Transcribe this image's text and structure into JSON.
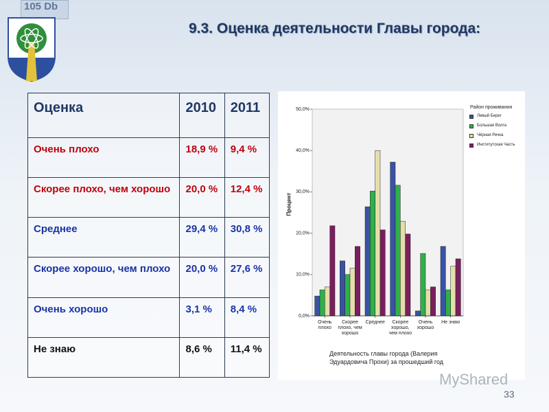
{
  "header": {
    "title": "9.3. Оценка деятельности Главы города:",
    "badge": "105 Db"
  },
  "table": {
    "header": [
      "Оценка",
      "2010",
      "2011"
    ],
    "rows": [
      [
        "Очень плохо",
        "18,9 %",
        "9,4 %"
      ],
      [
        "Скорее плохо, чем хорошо",
        "20,0 %",
        "12,4 %"
      ],
      [
        "Среднее",
        "29,4 %",
        "30,8 %"
      ],
      [
        "Скорее хорошо, чем плохо",
        "20,0 %",
        "27,6 %"
      ],
      [
        "Очень хорошо",
        "3,1 %",
        "8,4 %"
      ],
      [
        "Не знаю",
        "8,6 %",
        "11,4 %"
      ]
    ]
  },
  "chart_data": {
    "type": "bar",
    "x_label": "Деятельность главы города (Валерия Эдуардовича Прохи) за прошедший год",
    "y_label": "Процент",
    "legend_title": "Район проживания",
    "categories": [
      "Очень плохо",
      "Скорее плохо, чем хорошо",
      "Среднее",
      "Скорее хорошо, чем плохо",
      "Очень хорошо",
      "Не знаю"
    ],
    "series": [
      {
        "name": "Левый Берег",
        "color": "#3953a4",
        "values": [
          4.8,
          13.3,
          26.4,
          37.2,
          1.2,
          16.8
        ]
      },
      {
        "name": "Большая Волга",
        "color": "#2fb04a",
        "values": [
          6.3,
          10.0,
          30.2,
          31.6,
          15.1,
          6.3
        ]
      },
      {
        "name": "Чёрная Речка",
        "color": "#e4deaa",
        "values": [
          7.0,
          11.5,
          40.0,
          22.9,
          6.3,
          12.0
        ]
      },
      {
        "name": "Институтская Часть",
        "color": "#7a1f5e",
        "values": [
          21.8,
          16.8,
          20.8,
          19.8,
          7.0,
          13.8
        ]
      }
    ],
    "ylim": [
      0,
      50
    ],
    "yticks": [
      {
        "value": 0,
        "label": "0,0%"
      },
      {
        "value": 10,
        "label": "10,0%"
      },
      {
        "value": 20,
        "label": "20,0%"
      },
      {
        "value": 30,
        "label": "30,0%"
      },
      {
        "value": 40,
        "label": "40,0%"
      },
      {
        "value": 50,
        "label": "50,0%"
      }
    ],
    "legend": "right"
  },
  "page_number": "33",
  "watermark": "MyShared"
}
